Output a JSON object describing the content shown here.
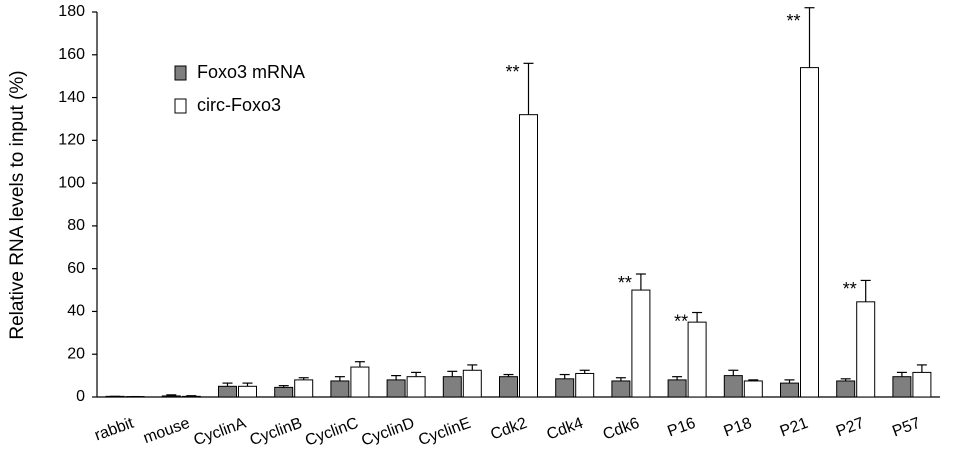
{
  "chart_data": {
    "type": "bar",
    "y_label": "Relative RNA levels to input (%)",
    "categories": [
      "rabbit",
      "mouse",
      "CyclinA",
      "CyclinB",
      "CyclinC",
      "CyclinD",
      "CyclinE",
      "Cdk2",
      "Cdk4",
      "Cdk6",
      "P16",
      "P18",
      "P21",
      "P27",
      "P57"
    ],
    "series": [
      {
        "name": "Foxo3 mRNA",
        "color": "#7f7f7f",
        "values": [
          0.3,
          0.5,
          5,
          4.5,
          7.5,
          8,
          9.5,
          9.5,
          8.5,
          7.5,
          8,
          10,
          6.5,
          7.5,
          9.5
        ],
        "errors": [
          0,
          0.5,
          1.5,
          0.8,
          2,
          2,
          2.5,
          1,
          2,
          1.5,
          1.5,
          2.5,
          1.5,
          1,
          2
        ]
      },
      {
        "name": "circ-Foxo3",
        "color": "#ffffff",
        "values": [
          0.2,
          0.3,
          5,
          8,
          14,
          9.5,
          12.5,
          132,
          11,
          50,
          35,
          7.5,
          154,
          44.5,
          11.5
        ],
        "errors": [
          0,
          0.3,
          1.5,
          1,
          2.5,
          2,
          2.5,
          24,
          1.5,
          7.5,
          4.5,
          0.5,
          28,
          10,
          3.5
        ]
      }
    ],
    "annotations": [
      {
        "text": "**",
        "x": "Cdk2"
      },
      {
        "text": "**",
        "x": "Cdk6"
      },
      {
        "text": "**",
        "x": "P16"
      },
      {
        "text": "**",
        "x": "P21"
      },
      {
        "text": "**",
        "x": "P27"
      }
    ],
    "ylim": [
      0,
      180
    ],
    "yticks": [
      0,
      20,
      40,
      60,
      80,
      100,
      120,
      140,
      160,
      180
    ],
    "grid": false,
    "legend": "upper left"
  }
}
